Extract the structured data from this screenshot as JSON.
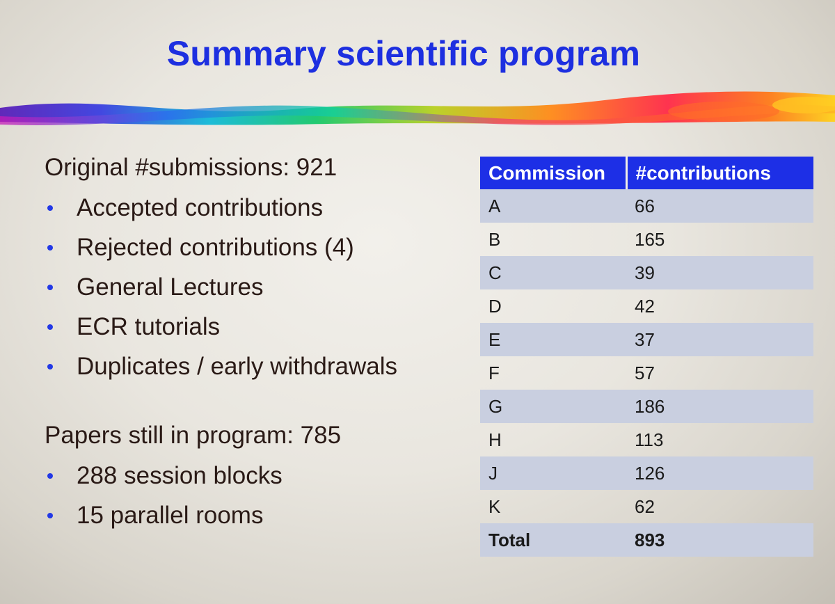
{
  "slide": {
    "title": "Summary scientific program"
  },
  "submissions": {
    "heading": "Original #submissions: 921",
    "items": [
      "Accepted contributions",
      "Rejected contributions (4)",
      "General Lectures",
      "ECR tutorials",
      "Duplicates / early withdrawals"
    ]
  },
  "program": {
    "heading": "Papers still in program: 785",
    "items": [
      "288 session blocks",
      "15 parallel rooms"
    ]
  },
  "table": {
    "headers": [
      "Commission",
      "#contributions"
    ],
    "rows": [
      [
        "A",
        "66"
      ],
      [
        "B",
        "165"
      ],
      [
        "C",
        "39"
      ],
      [
        "D",
        "42"
      ],
      [
        "E",
        "37"
      ],
      [
        "F",
        "57"
      ],
      [
        "G",
        "186"
      ],
      [
        "H",
        "113"
      ],
      [
        "J",
        "126"
      ],
      [
        "K",
        "62"
      ]
    ],
    "total": [
      "Total",
      "893"
    ]
  },
  "colors": {
    "title": "#1d2fe0",
    "header_bg": "#1d2fe6",
    "band_row": "#c9cfe0",
    "bullet": "#2238e6"
  }
}
